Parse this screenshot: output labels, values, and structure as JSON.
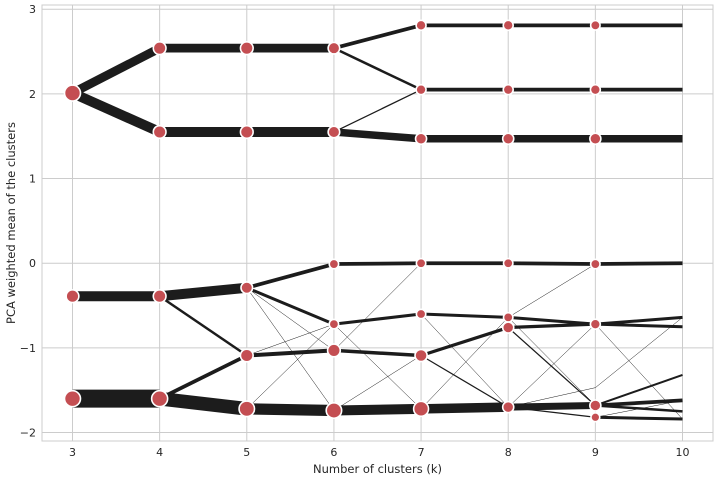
{
  "chart_data": {
    "type": "line",
    "title": "",
    "xlabel": "Number of clusters (k)",
    "ylabel": "PCA weighted mean of the clusters",
    "xlim": [
      2.65,
      10.35
    ],
    "ylim": [
      -2.1,
      3.05
    ],
    "x_ticks": [
      3,
      4,
      5,
      6,
      7,
      8,
      9,
      10
    ],
    "y_ticks": [
      -2,
      -1,
      0,
      1,
      2,
      3
    ],
    "grid": true,
    "colors": {
      "line": "#1c1c1c",
      "marker": "#c44e52",
      "marker_edge": "#ffffff",
      "grid": "#cccccc",
      "frame": "#cccccc"
    },
    "nodes": [
      {
        "id": "k3a",
        "x": 3,
        "y": 2.01,
        "size": 1.0
      },
      {
        "id": "k3b",
        "x": 3,
        "y": -0.39,
        "size": 0.7
      },
      {
        "id": "k3c",
        "x": 3,
        "y": -1.6,
        "size": 1.0
      },
      {
        "id": "k4a",
        "x": 4,
        "y": 2.54,
        "size": 0.7
      },
      {
        "id": "k4b",
        "x": 4,
        "y": 1.55,
        "size": 0.7
      },
      {
        "id": "k4c",
        "x": 4,
        "y": -0.39,
        "size": 0.7
      },
      {
        "id": "k4d",
        "x": 4,
        "y": -1.6,
        "size": 1.0
      },
      {
        "id": "k5a",
        "x": 5,
        "y": 2.54,
        "size": 0.7
      },
      {
        "id": "k5b",
        "x": 5,
        "y": 1.55,
        "size": 0.7
      },
      {
        "id": "k5c",
        "x": 5,
        "y": -0.29,
        "size": 0.6
      },
      {
        "id": "k5d",
        "x": 5,
        "y": -1.09,
        "size": 0.7
      },
      {
        "id": "k5e",
        "x": 5,
        "y": -1.72,
        "size": 0.95
      },
      {
        "id": "k6a",
        "x": 6,
        "y": 2.54,
        "size": 0.6
      },
      {
        "id": "k6b",
        "x": 6,
        "y": 1.55,
        "size": 0.6
      },
      {
        "id": "k6c",
        "x": 6,
        "y": -0.01,
        "size": 0.4
      },
      {
        "id": "k6d",
        "x": 6,
        "y": -0.72,
        "size": 0.4
      },
      {
        "id": "k6e",
        "x": 6,
        "y": -1.03,
        "size": 0.7
      },
      {
        "id": "k6f",
        "x": 6,
        "y": -1.74,
        "size": 0.95
      },
      {
        "id": "k7a",
        "x": 7,
        "y": 2.81,
        "size": 0.45
      },
      {
        "id": "k7b",
        "x": 7,
        "y": 2.05,
        "size": 0.45
      },
      {
        "id": "k7c",
        "x": 7,
        "y": 1.47,
        "size": 0.55
      },
      {
        "id": "k7d",
        "x": 7,
        "y": 0.0,
        "size": 0.4
      },
      {
        "id": "k7e",
        "x": 7,
        "y": -0.6,
        "size": 0.4
      },
      {
        "id": "k7f",
        "x": 7,
        "y": -1.09,
        "size": 0.65
      },
      {
        "id": "k7g",
        "x": 7,
        "y": -1.72,
        "size": 0.9
      },
      {
        "id": "k8a",
        "x": 8,
        "y": 2.81,
        "size": 0.45
      },
      {
        "id": "k8b",
        "x": 8,
        "y": 2.05,
        "size": 0.45
      },
      {
        "id": "k8c",
        "x": 8,
        "y": 1.47,
        "size": 0.55
      },
      {
        "id": "k8d",
        "x": 8,
        "y": 0.0,
        "size": 0.4
      },
      {
        "id": "k8e",
        "x": 8,
        "y": -0.64,
        "size": 0.4
      },
      {
        "id": "k8f",
        "x": 8,
        "y": -0.76,
        "size": 0.55
      },
      {
        "id": "k8g",
        "x": 8,
        "y": -1.7,
        "size": 0.55
      },
      {
        "id": "k9a",
        "x": 9,
        "y": 2.81,
        "size": 0.4
      },
      {
        "id": "k9b",
        "x": 9,
        "y": 2.05,
        "size": 0.45
      },
      {
        "id": "k9c",
        "x": 9,
        "y": 1.47,
        "size": 0.55
      },
      {
        "id": "k9d",
        "x": 9,
        "y": -0.01,
        "size": 0.4
      },
      {
        "id": "k9e",
        "x": 9,
        "y": -0.72,
        "size": 0.45
      },
      {
        "id": "k9f",
        "x": 9,
        "y": -1.47,
        "size": 0.0
      },
      {
        "id": "k9g",
        "x": 9,
        "y": -1.68,
        "size": 0.55
      },
      {
        "id": "k9h",
        "x": 9,
        "y": -1.82,
        "size": 0.35
      },
      {
        "id": "k10a",
        "x": 10,
        "y": 2.81,
        "size": 0.0
      },
      {
        "id": "k10b",
        "x": 10,
        "y": 2.05,
        "size": 0.0
      },
      {
        "id": "k10c",
        "x": 10,
        "y": 1.47,
        "size": 0.0
      },
      {
        "id": "k10d",
        "x": 10,
        "y": 0.0,
        "size": 0.0
      },
      {
        "id": "k10e",
        "x": 10,
        "y": -0.64,
        "size": 0.0
      },
      {
        "id": "k10f",
        "x": 10,
        "y": -0.75,
        "size": 0.0
      },
      {
        "id": "k10g",
        "x": 10,
        "y": -1.32,
        "size": 0.0
      },
      {
        "id": "k10h",
        "x": 10,
        "y": -1.62,
        "size": 0.0
      },
      {
        "id": "k10i",
        "x": 10,
        "y": -1.75,
        "size": 0.0
      },
      {
        "id": "k10j",
        "x": 10,
        "y": -1.84,
        "size": 0.0
      }
    ],
    "edges": [
      {
        "from": "k3a",
        "to": "k4a",
        "w": 0.35
      },
      {
        "from": "k3a",
        "to": "k4b",
        "w": 0.4
      },
      {
        "from": "k3b",
        "to": "k4c",
        "w": 0.4
      },
      {
        "from": "k3c",
        "to": "k4d",
        "w": 0.72
      },
      {
        "from": "k4a",
        "to": "k5a",
        "w": 0.35
      },
      {
        "from": "k4b",
        "to": "k5b",
        "w": 0.4
      },
      {
        "from": "k4c",
        "to": "k5c",
        "w": 0.4
      },
      {
        "from": "k4c",
        "to": "k5d",
        "w": 0.1
      },
      {
        "from": "k4d",
        "to": "k5d",
        "w": 0.15
      },
      {
        "from": "k4d",
        "to": "k5e",
        "w": 0.55
      },
      {
        "from": "k5a",
        "to": "k6a",
        "w": 0.35
      },
      {
        "from": "k5b",
        "to": "k6b",
        "w": 0.4
      },
      {
        "from": "k5c",
        "to": "k6c",
        "w": 0.15
      },
      {
        "from": "k5c",
        "to": "k6d",
        "w": 0.12
      },
      {
        "from": "k5c",
        "to": "k6e",
        "w": 0.02
      },
      {
        "from": "k5c",
        "to": "k6f",
        "w": 0.02
      },
      {
        "from": "k5d",
        "to": "k6d",
        "w": 0.02
      },
      {
        "from": "k5d",
        "to": "k6e",
        "w": 0.16
      },
      {
        "from": "k5e",
        "to": "k6d",
        "w": 0.02
      },
      {
        "from": "k5e",
        "to": "k6f",
        "w": 0.45
      },
      {
        "from": "k6a",
        "to": "k7a",
        "w": 0.15
      },
      {
        "from": "k6a",
        "to": "k7b",
        "w": 0.1
      },
      {
        "from": "k6b",
        "to": "k7b",
        "w": 0.05
      },
      {
        "from": "k6b",
        "to": "k7c",
        "w": 0.3
      },
      {
        "from": "k6c",
        "to": "k7d",
        "w": 0.15
      },
      {
        "from": "k6d",
        "to": "k7e",
        "w": 0.12
      },
      {
        "from": "k6d",
        "to": "k7g",
        "w": 0.02
      },
      {
        "from": "k6e",
        "to": "k7d",
        "w": 0.02
      },
      {
        "from": "k6e",
        "to": "k7f",
        "w": 0.14
      },
      {
        "from": "k6f",
        "to": "k7f",
        "w": 0.02
      },
      {
        "from": "k6f",
        "to": "k7g",
        "w": 0.4
      },
      {
        "from": "k7a",
        "to": "k8a",
        "w": 0.15
      },
      {
        "from": "k7b",
        "to": "k8b",
        "w": 0.15
      },
      {
        "from": "k7c",
        "to": "k8c",
        "w": 0.3
      },
      {
        "from": "k7d",
        "to": "k8d",
        "w": 0.15
      },
      {
        "from": "k7e",
        "to": "k8e",
        "w": 0.12
      },
      {
        "from": "k7e",
        "to": "k8g",
        "w": 0.02
      },
      {
        "from": "k7f",
        "to": "k8f",
        "w": 0.13
      },
      {
        "from": "k7f",
        "to": "k8g",
        "w": 0.05
      },
      {
        "from": "k7g",
        "to": "k8g",
        "w": 0.38
      },
      {
        "from": "k7g",
        "to": "k8e",
        "w": 0.02
      },
      {
        "from": "k8a",
        "to": "k9a",
        "w": 0.15
      },
      {
        "from": "k8b",
        "to": "k9b",
        "w": 0.15
      },
      {
        "from": "k8c",
        "to": "k9c",
        "w": 0.3
      },
      {
        "from": "k8d",
        "to": "k9d",
        "w": 0.15
      },
      {
        "from": "k8e",
        "to": "k9e",
        "w": 0.12
      },
      {
        "from": "k8e",
        "to": "k9g",
        "w": 0.02
      },
      {
        "from": "k8e",
        "to": "k9d",
        "w": 0.02
      },
      {
        "from": "k8f",
        "to": "k9e",
        "w": 0.13
      },
      {
        "from": "k8f",
        "to": "k9g",
        "w": 0.05
      },
      {
        "from": "k8g",
        "to": "k9g",
        "w": 0.28
      },
      {
        "from": "k8g",
        "to": "k9h",
        "w": 0.05
      },
      {
        "from": "k8g",
        "to": "k9f",
        "w": 0.02
      },
      {
        "from": "k8g",
        "to": "k9e",
        "w": 0.02
      },
      {
        "from": "k9a",
        "to": "k10a",
        "w": 0.15
      },
      {
        "from": "k9b",
        "to": "k10b",
        "w": 0.15
      },
      {
        "from": "k9c",
        "to": "k10c",
        "w": 0.3
      },
      {
        "from": "k9d",
        "to": "k10d",
        "w": 0.15
      },
      {
        "from": "k9e",
        "to": "k10e",
        "w": 0.12
      },
      {
        "from": "k9e",
        "to": "k10f",
        "w": 0.12
      },
      {
        "from": "k9e",
        "to": "k10j",
        "w": 0.02
      },
      {
        "from": "k9f",
        "to": "k10e",
        "w": 0.02
      },
      {
        "from": "k9g",
        "to": "k10g",
        "w": 0.08
      },
      {
        "from": "k9g",
        "to": "k10h",
        "w": 0.15
      },
      {
        "from": "k9g",
        "to": "k10i",
        "w": 0.1
      },
      {
        "from": "k9h",
        "to": "k10j",
        "w": 0.12
      },
      {
        "from": "k9h",
        "to": "k10h",
        "w": 0.02
      }
    ]
  }
}
